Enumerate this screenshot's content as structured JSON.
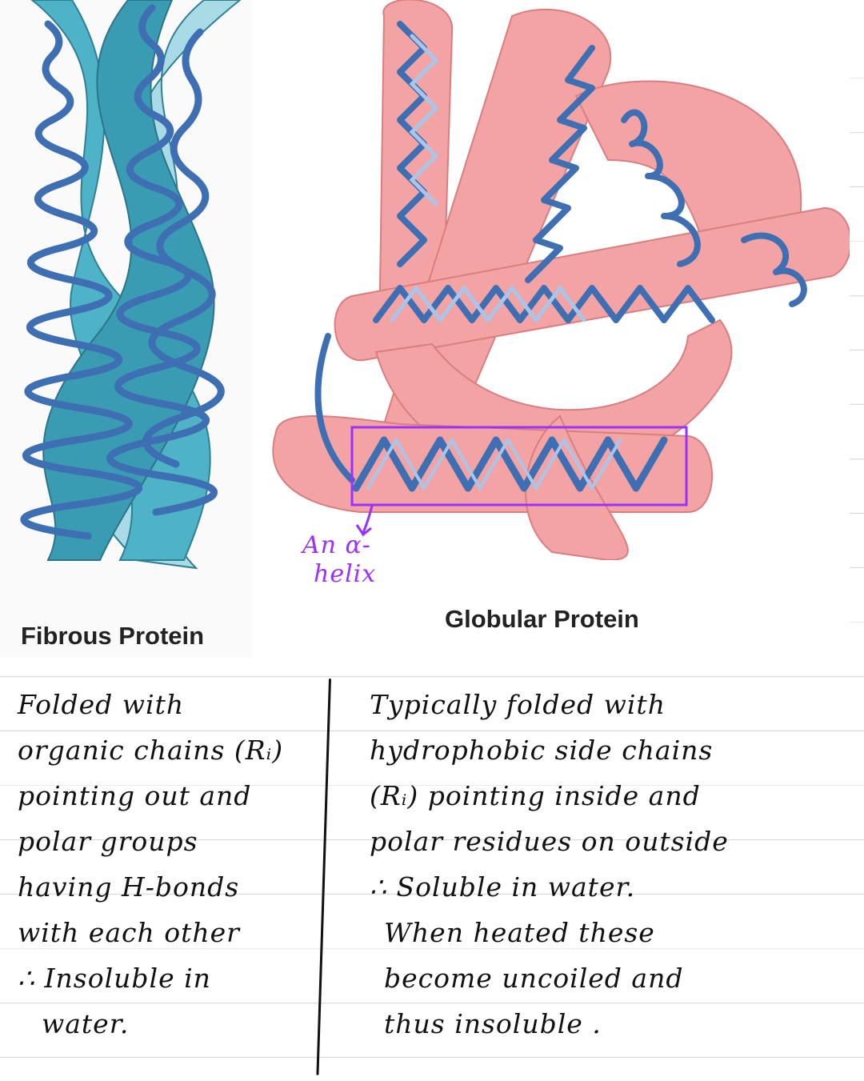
{
  "figure": {
    "fibrous_caption": "Fibrous Protein",
    "globular_caption": "Globular Protein",
    "annotation_line1": "An α-",
    "annotation_line2": "helix",
    "colors": {
      "fibrous_dark": "#3a9cb3",
      "fibrous_light": "#9fd4e0",
      "helix_dark": "#3f6fb3",
      "helix_light": "#a9c6ea",
      "globular_ribbon": "#f3a3a3",
      "globular_edge": "#d97e80",
      "annotation": "#9b30ff"
    }
  },
  "notes": {
    "fibrous": [
      "Folded with",
      "organic chains (Rᵢ)",
      "pointing out and",
      "polar groups",
      "having H-bonds",
      "with each other",
      "∴ Insoluble in",
      "water."
    ],
    "globular": [
      "Typically folded with",
      "hydrophobic side chains",
      "(Rᵢ) pointing inside and",
      "polar residues on outside",
      "∴ Soluble in water.",
      "When heated these",
      "become uncoiled and",
      "thus insoluble ."
    ]
  }
}
